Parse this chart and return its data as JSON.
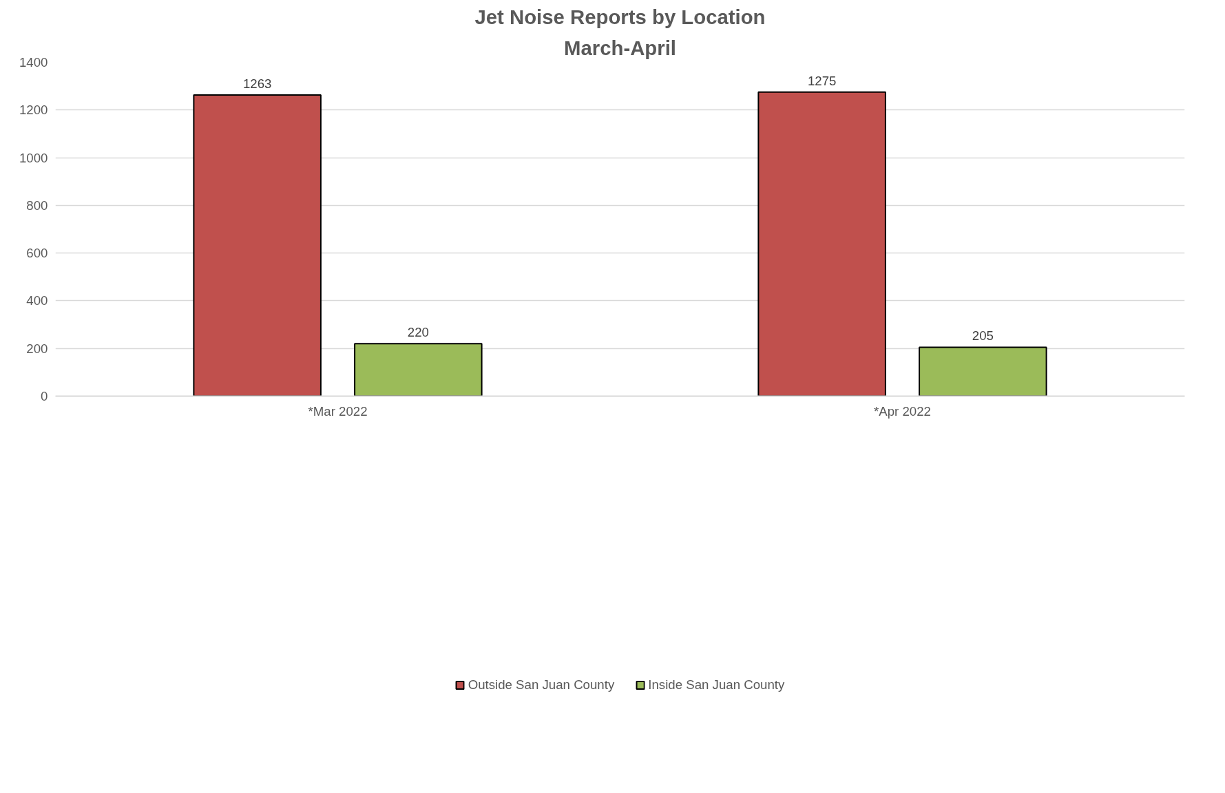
{
  "chart_data": {
    "type": "bar",
    "title": "Jet Noise Reports by Location",
    "subtitle": "March-April",
    "categories": [
      "*Mar 2022",
      "*Apr 2022"
    ],
    "series": [
      {
        "name": "Outside San Juan County",
        "color": "#c0504d",
        "values": [
          1263,
          1275
        ]
      },
      {
        "name": "Inside San Juan County",
        "color": "#9bbb59",
        "values": [
          220,
          205
        ]
      }
    ],
    "ylim": [
      0,
      1400
    ],
    "yticks": [
      0,
      200,
      400,
      600,
      800,
      1000,
      1200,
      1400
    ],
    "grid": "y",
    "legend": "bottom",
    "data_labels": true
  }
}
